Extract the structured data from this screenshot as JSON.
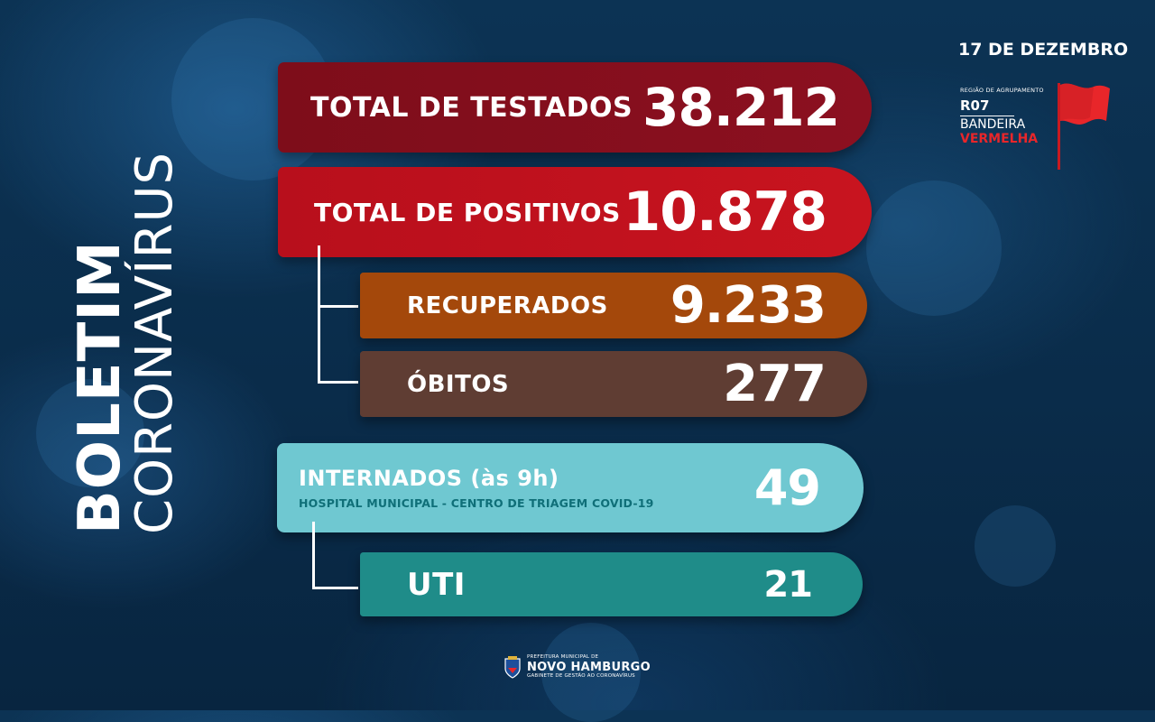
{
  "title": {
    "main": "BOLETIM",
    "sub": "CORONAVÍRUS"
  },
  "date": "17 DE DEZEMBRO",
  "region": {
    "label": "REGIÃO DE AGRUPAMENTO",
    "code": "R07",
    "flag_line1": "BANDEIRA",
    "flag_line2": "VERMELHA",
    "flag_color": "#e8262a"
  },
  "stats": {
    "testados": {
      "label": "TOTAL DE TESTADOS",
      "value": "38.212",
      "color": "#7e0d1a"
    },
    "positivos": {
      "label": "TOTAL DE POSITIVOS",
      "value": "10.878",
      "color": "#c8141f"
    },
    "recuperados": {
      "label": "RECUPERADOS",
      "value": "9.233",
      "color": "#a4480b"
    },
    "obitos": {
      "label": "ÓBITOS",
      "value": "277",
      "color": "#5f3d33"
    },
    "internados": {
      "label": "INTERNADOS (às 9h)",
      "sublabel": "HOSPITAL MUNICIPAL - CENTRO DE TRIAGEM COVID-19",
      "value": "49",
      "color": "#6fc8d1"
    },
    "uti": {
      "label": "UTI",
      "value": "21",
      "color": "#1f8c89"
    }
  },
  "footer": {
    "top": "PREFEITURA MUNICIPAL DE",
    "city": "NOVO HAMBURGO",
    "bottom": "GABINETE DE GESTÃO AO CORONAVÍRUS"
  }
}
